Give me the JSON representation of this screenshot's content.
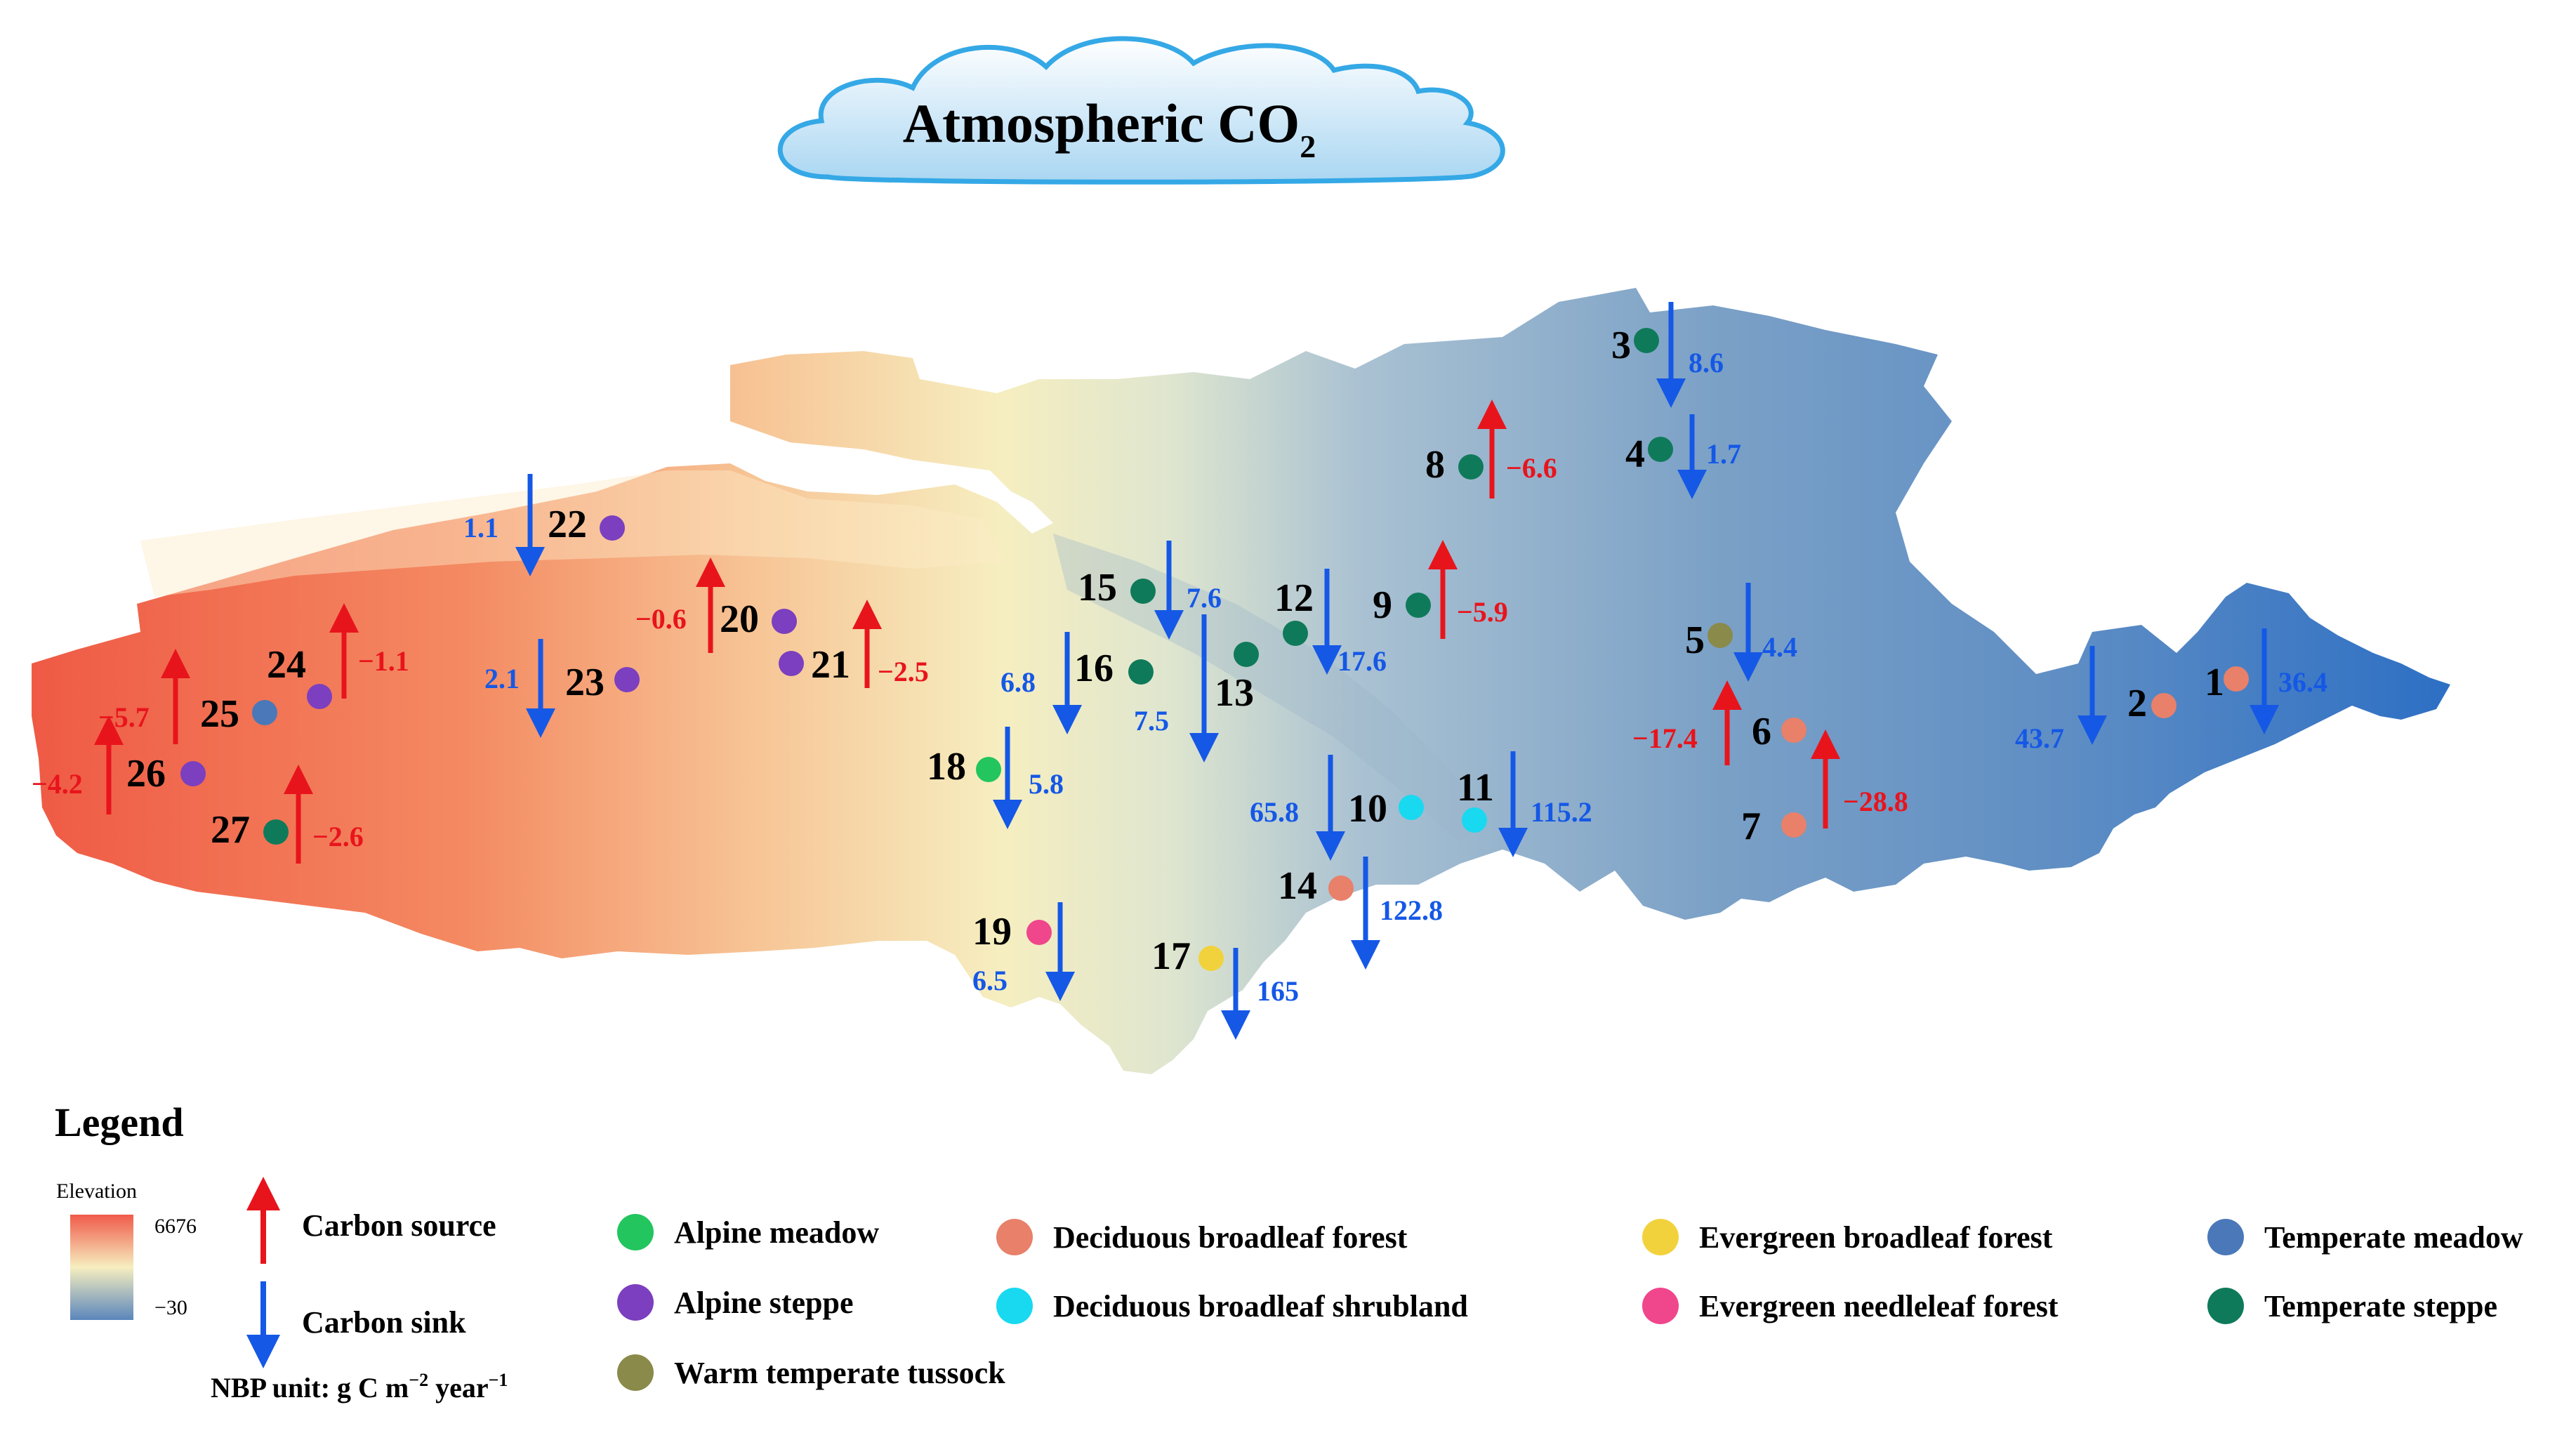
{
  "title": {
    "main": "Atmospheric CO",
    "subscript": "2"
  },
  "colors": {
    "source": "#e8141c",
    "sink": "#1558e6",
    "elev_high": "#f05a4a",
    "elev_mid": "#f6eebf",
    "elev_low": "#5a86bc"
  },
  "vegetation_types": [
    {
      "key": "alpine_meadow",
      "label": "Alpine meadow",
      "color": "#22c55e"
    },
    {
      "key": "alpine_steppe",
      "label": "Alpine steppe",
      "color": "#7b3fbf"
    },
    {
      "key": "warm_temperate_tussock",
      "label": "Warm temperate tussock",
      "color": "#8a8a4a"
    },
    {
      "key": "deciduous_broadleaf_forest",
      "label": "Deciduous broadleaf forest",
      "color": "#e8806a"
    },
    {
      "key": "deciduous_broadleaf_shrubland",
      "label": "Deciduous broadleaf shrubland",
      "color": "#18d9f0"
    },
    {
      "key": "evergreen_broadleaf_forest",
      "label": "Evergreen broadleaf forest",
      "color": "#f2d23c"
    },
    {
      "key": "evergreen_needleleaf_forest",
      "label": "Evergreen needleleaf forest",
      "color": "#f0468c"
    },
    {
      "key": "temperate_meadow",
      "label": "Temperate meadow",
      "color": "#4a78b8"
    },
    {
      "key": "temperate_steppe",
      "label": "Temperate steppe",
      "color": "#0f7a5a"
    }
  ],
  "sites": [
    {
      "id": "1",
      "type": "deciduous_broadleaf_forest",
      "nbp": "36.4",
      "flux": "sink"
    },
    {
      "id": "2",
      "type": "deciduous_broadleaf_forest",
      "nbp": "43.7",
      "flux": "sink"
    },
    {
      "id": "3",
      "type": "temperate_steppe",
      "nbp": "8.6",
      "flux": "sink"
    },
    {
      "id": "4",
      "type": "temperate_steppe",
      "nbp": "1.7",
      "flux": "sink"
    },
    {
      "id": "5",
      "type": "warm_temperate_tussock",
      "nbp": "4.4",
      "flux": "sink"
    },
    {
      "id": "6",
      "type": "deciduous_broadleaf_forest",
      "nbp": "−17.4",
      "flux": "source"
    },
    {
      "id": "7",
      "type": "deciduous_broadleaf_forest",
      "nbp": "−28.8",
      "flux": "source"
    },
    {
      "id": "8",
      "type": "temperate_steppe",
      "nbp": "−6.6",
      "flux": "source"
    },
    {
      "id": "9",
      "type": "temperate_steppe",
      "nbp": "−5.9",
      "flux": "source"
    },
    {
      "id": "10",
      "type": "deciduous_broadleaf_shrubland",
      "nbp": "65.8",
      "flux": "sink"
    },
    {
      "id": "11",
      "type": "deciduous_broadleaf_shrubland",
      "nbp": "115.2",
      "flux": "sink"
    },
    {
      "id": "12",
      "type": "temperate_steppe",
      "nbp": "17.6",
      "flux": "sink"
    },
    {
      "id": "13",
      "type": "temperate_steppe",
      "nbp": "7.5",
      "flux": "sink"
    },
    {
      "id": "14",
      "type": "deciduous_broadleaf_forest",
      "nbp": "122.8",
      "flux": "sink"
    },
    {
      "id": "15",
      "type": "temperate_steppe",
      "nbp": "7.6",
      "flux": "sink"
    },
    {
      "id": "16",
      "type": "temperate_steppe",
      "nbp": "6.8",
      "flux": "sink"
    },
    {
      "id": "17",
      "type": "evergreen_broadleaf_forest",
      "nbp": "165",
      "flux": "sink"
    },
    {
      "id": "18",
      "type": "alpine_meadow",
      "nbp": "5.8",
      "flux": "sink"
    },
    {
      "id": "19",
      "type": "evergreen_needleleaf_forest",
      "nbp": "6.5",
      "flux": "sink"
    },
    {
      "id": "20",
      "type": "alpine_steppe",
      "nbp": "−0.6",
      "flux": "source"
    },
    {
      "id": "21",
      "type": "alpine_steppe",
      "nbp": "−2.5",
      "flux": "source"
    },
    {
      "id": "22",
      "type": "alpine_steppe",
      "nbp": "1.1",
      "flux": "sink"
    },
    {
      "id": "23",
      "type": "alpine_steppe",
      "nbp": "2.1",
      "flux": "sink"
    },
    {
      "id": "24",
      "type": "alpine_steppe",
      "nbp": "−1.1",
      "flux": "source"
    },
    {
      "id": "25",
      "type": "temperate_meadow",
      "nbp": "−5.7",
      "flux": "source"
    },
    {
      "id": "26",
      "type": "alpine_steppe",
      "nbp": "−4.2",
      "flux": "source"
    },
    {
      "id": "27",
      "type": "temperate_steppe",
      "nbp": "−2.6",
      "flux": "source"
    }
  ],
  "legend": {
    "title": "Legend",
    "elevation_label": "Elevation",
    "elevation_max": "6676",
    "elevation_min": "−30",
    "carbon_source": "Carbon source",
    "carbon_sink": "Carbon sink",
    "unit_prefix": "NBP unit: g C m",
    "unit_exp1": "−2",
    "unit_mid": " year",
    "unit_exp2": "−1"
  }
}
